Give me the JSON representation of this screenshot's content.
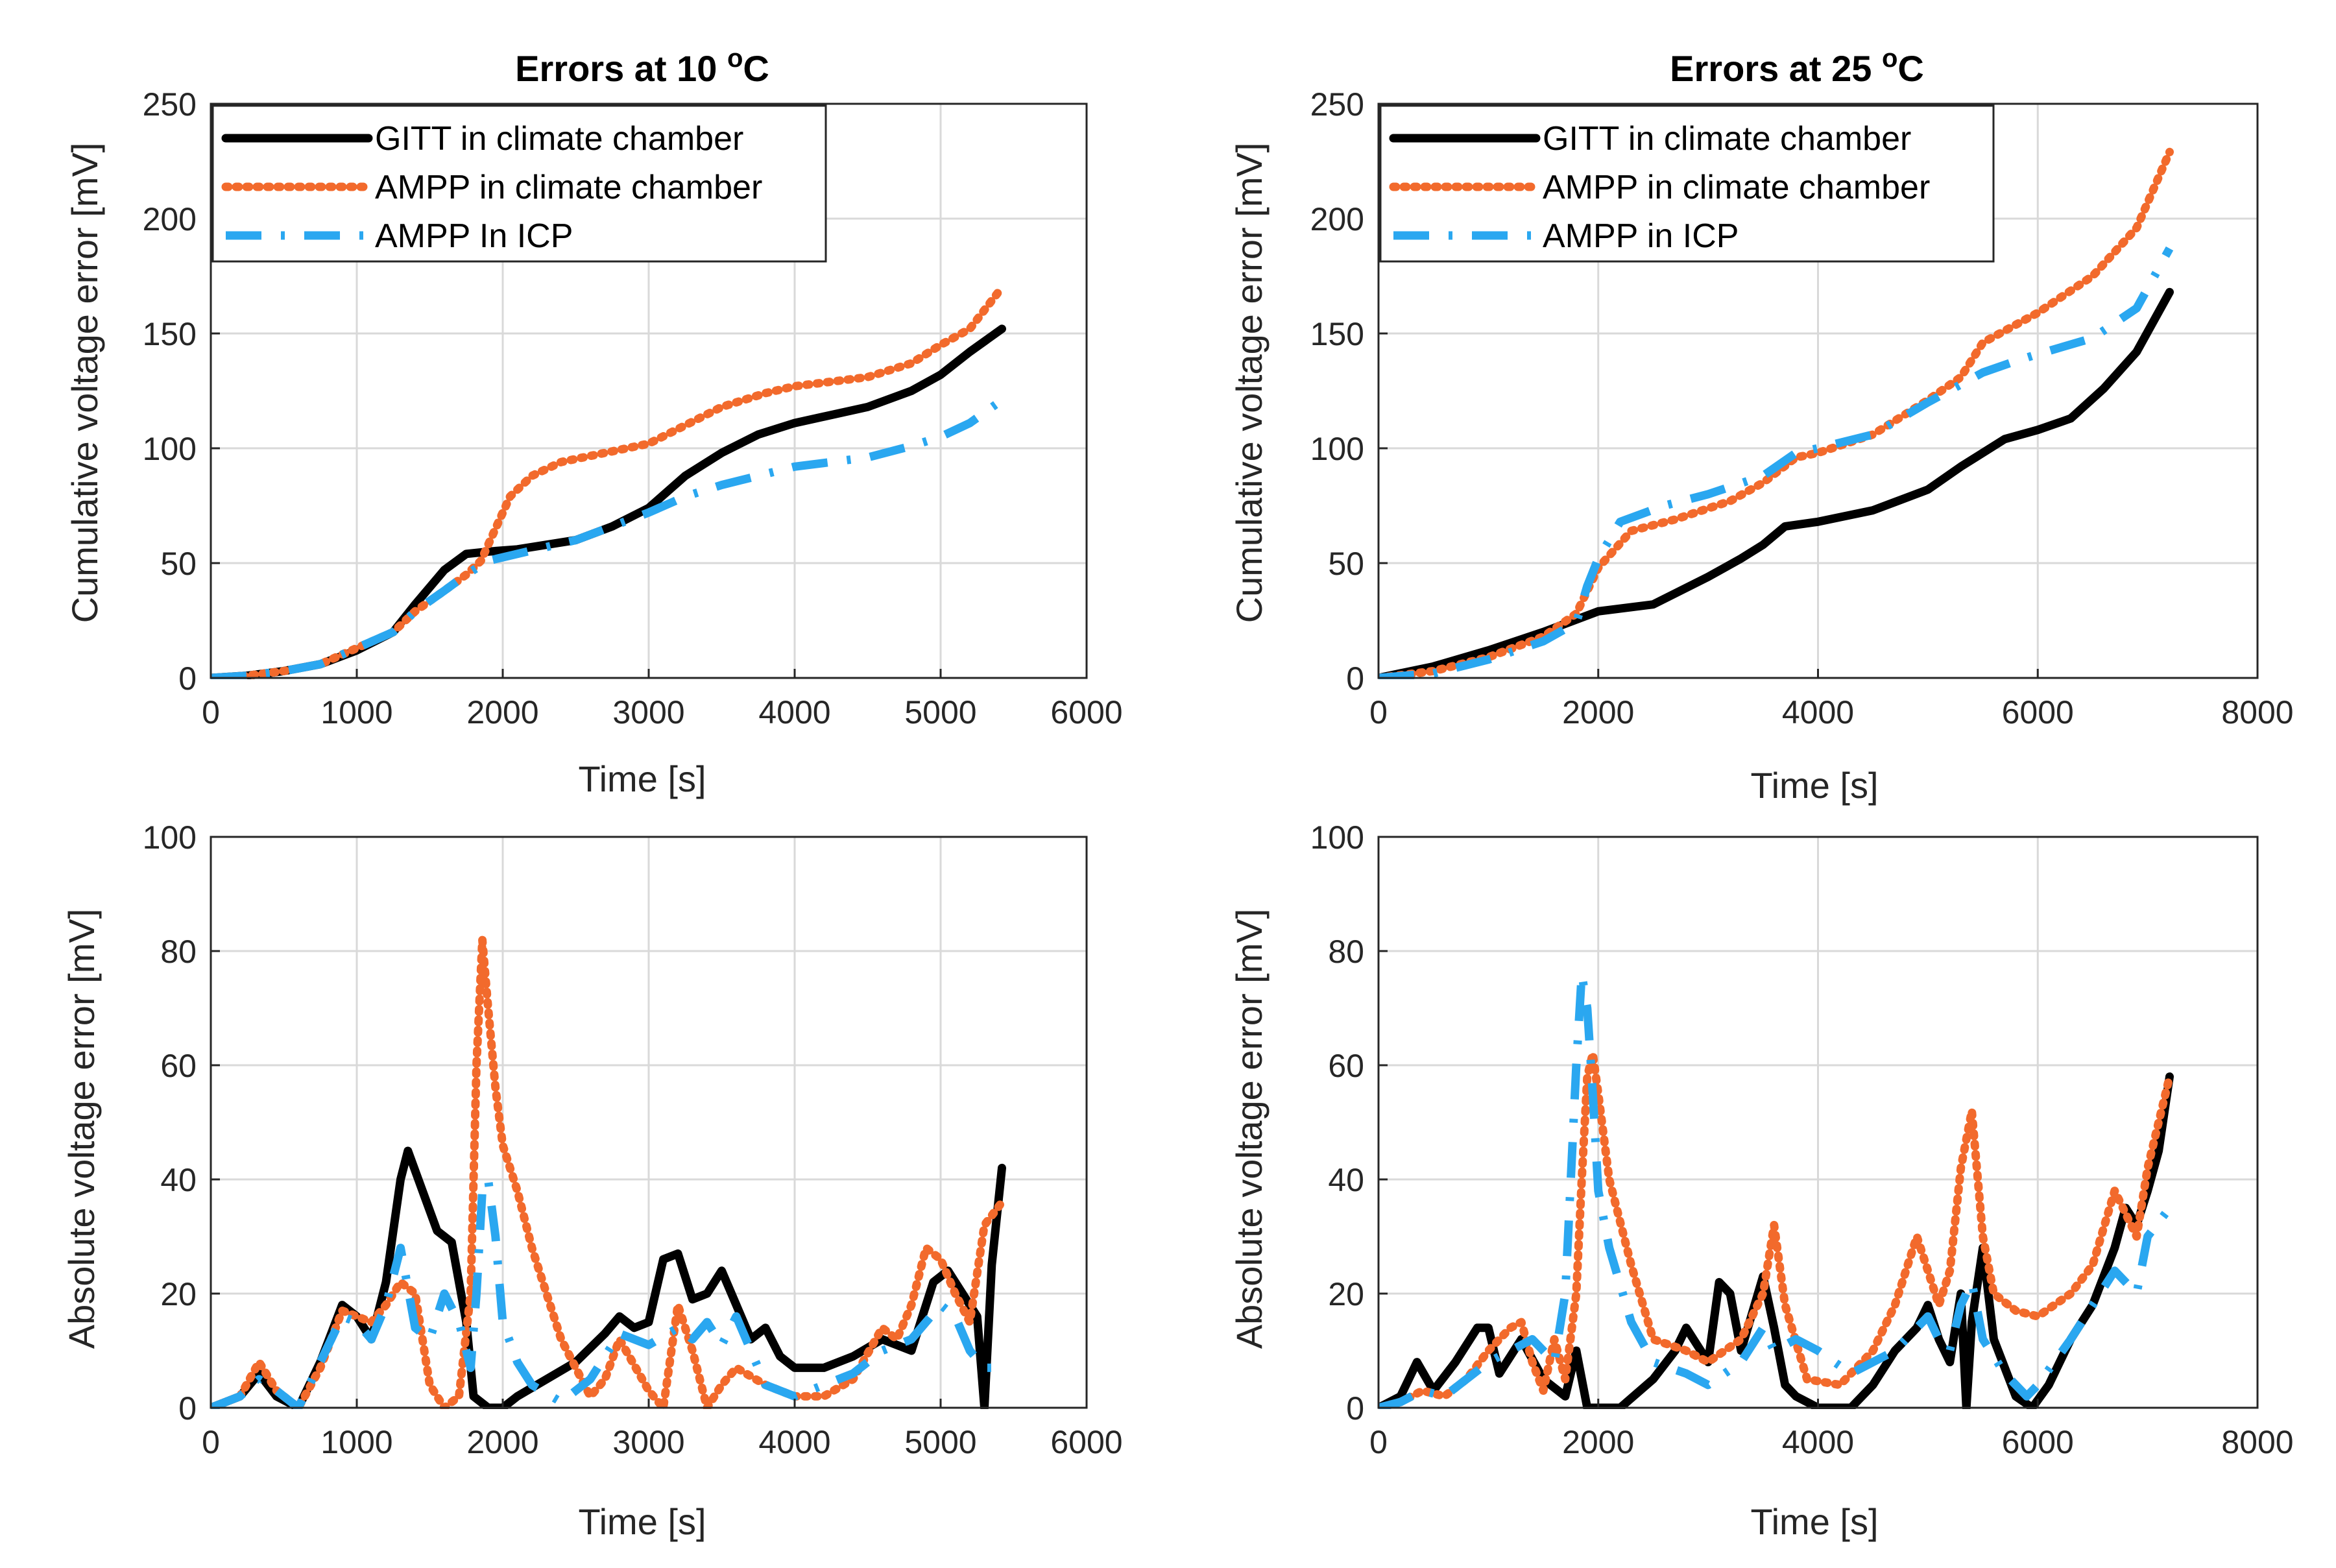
{
  "colors": {
    "gitt": "#000000",
    "ampp_chamber": "#f26a2c",
    "ampp_icp": "#2aa7f0",
    "grid": "#d9d9d9",
    "axis": "#262626"
  },
  "chart_data": [
    {
      "type": "line",
      "title": "Errors at 10°C",
      "xlabel": "Time [s]",
      "ylabel": "Cumulative  voltage  error [mV]",
      "xlim": [
        0,
        6000
      ],
      "ylim": [
        0,
        250
      ],
      "xticks": [
        0,
        1000,
        2000,
        3000,
        4000,
        5000,
        6000
      ],
      "yticks": [
        0,
        50,
        100,
        150,
        200,
        250
      ],
      "xtick_labels": [
        "0",
        "1000",
        "2000",
        "3000",
        "4000",
        "5000",
        "6000"
      ],
      "ytick_labels": [
        "0",
        "50",
        "100",
        "150",
        "200",
        "250"
      ],
      "grid": true,
      "legend": [
        "GITT in climate chamber",
        "AMPP in climate chamber",
        "AMPP In ICP"
      ],
      "legend_position": "top-left",
      "series": [
        {
          "name": "GITT in climate chamber",
          "style": "solid",
          "x": [
            0,
            250,
            500,
            750,
            1000,
            1250,
            1400,
            1600,
            1750,
            1900,
            2100,
            2500,
            2750,
            3000,
            3250,
            3500,
            3750,
            4000,
            4500,
            4800,
            5000,
            5200,
            5420
          ],
          "y": [
            0,
            1,
            3,
            6,
            12,
            20,
            32,
            47,
            54,
            55,
            56,
            60,
            66,
            74,
            88,
            98,
            106,
            111,
            118,
            125,
            132,
            142,
            152
          ]
        },
        {
          "name": "AMPP in climate chamber",
          "style": "dotted",
          "x": [
            0,
            250,
            500,
            750,
            1000,
            1250,
            1400,
            1600,
            1750,
            1850,
            1950,
            2050,
            2200,
            2400,
            2700,
            3000,
            3250,
            3500,
            3800,
            4000,
            4500,
            4800,
            5000,
            5200,
            5420
          ],
          "y": [
            0,
            1,
            3,
            6,
            13,
            20,
            29,
            38,
            45,
            51,
            65,
            79,
            88,
            94,
            98,
            102,
            110,
            118,
            124,
            127,
            131,
            137,
            145,
            152,
            170
          ]
        },
        {
          "name": "AMPP In ICP",
          "style": "dashed",
          "x": [
            0,
            250,
            500,
            750,
            1000,
            1250,
            1400,
            1600,
            1750,
            1900,
            2100,
            2500,
            2750,
            3000,
            3250,
            3500,
            3750,
            4000,
            4500,
            4800,
            5000,
            5200,
            5420
          ],
          "y": [
            0,
            1,
            3,
            6,
            13,
            20,
            29,
            38,
            45,
            51,
            54,
            60,
            66,
            72,
            79,
            84,
            88,
            92,
            96,
            101,
            105,
            111,
            121
          ]
        }
      ]
    },
    {
      "type": "line",
      "title": "Errors at 25°C",
      "xlabel": "Time [s]",
      "ylabel": "Cumulative voltage error [mV]",
      "xlim": [
        0,
        8000
      ],
      "ylim": [
        0,
        250
      ],
      "xticks": [
        0,
        2000,
        4000,
        6000,
        8000
      ],
      "yticks": [
        0,
        50,
        100,
        150,
        200,
        250
      ],
      "xtick_labels": [
        "0",
        "2000",
        "4000",
        "6000",
        "8000"
      ],
      "ytick_labels": [
        "0",
        "50",
        "100",
        "150",
        "200",
        "250"
      ],
      "grid": true,
      "legend": [
        "GITT in climate chamber",
        "AMPP in climate chamber",
        "AMPP in ICP"
      ],
      "legend_position": "top-left",
      "series": [
        {
          "name": "GITT in climate chamber",
          "style": "solid",
          "x": [
            0,
            500,
            1000,
            1500,
            2000,
            2500,
            3000,
            3300,
            3500,
            3700,
            4000,
            4500,
            5000,
            5300,
            5700,
            6000,
            6300,
            6600,
            6900,
            7200
          ],
          "y": [
            0,
            5,
            12,
            20,
            29,
            32,
            44,
            52,
            58,
            66,
            68,
            73,
            82,
            92,
            104,
            108,
            113,
            126,
            142,
            168
          ]
        },
        {
          "name": "AMPP in climate chamber",
          "style": "dotted",
          "x": [
            0,
            500,
            1000,
            1500,
            1800,
            2000,
            2300,
            2700,
            3200,
            3500,
            3800,
            4000,
            4500,
            5000,
            5300,
            5500,
            6000,
            6500,
            6900,
            7200
          ],
          "y": [
            0,
            3,
            9,
            18,
            28,
            48,
            64,
            69,
            77,
            85,
            96,
            98,
            106,
            121,
            131,
            146,
            159,
            175,
            196,
            229
          ]
        },
        {
          "name": "AMPP in ICP",
          "style": "dashed",
          "x": [
            0,
            500,
            1000,
            1500,
            1800,
            1900,
            2000,
            2200,
            2600,
            3000,
            3500,
            3800,
            4000,
            4500,
            5000,
            5500,
            5800,
            6000,
            6500,
            6900,
            7200
          ],
          "y": [
            0,
            2,
            8,
            16,
            24,
            40,
            52,
            68,
            75,
            80,
            88,
            98,
            100,
            106,
            120,
            133,
            138,
            141,
            148,
            161,
            187
          ]
        }
      ]
    },
    {
      "type": "line",
      "title": "",
      "xlabel": "Time [s]",
      "ylabel": "Absolute voltage  error [mV]",
      "xlim": [
        0,
        6000
      ],
      "ylim": [
        0,
        100
      ],
      "xticks": [
        0,
        1000,
        2000,
        3000,
        4000,
        5000,
        6000
      ],
      "yticks": [
        0,
        20,
        40,
        60,
        80,
        100
      ],
      "xtick_labels": [
        "0",
        "1000",
        "2000",
        "3000",
        "4000",
        "5000",
        "6000"
      ],
      "ytick_labels": [
        "0",
        "20",
        "40",
        "60",
        "80",
        "100"
      ],
      "grid": true,
      "series": [
        {
          "name": "GITT in climate chamber",
          "style": "solid",
          "x": [
            0,
            200,
            330,
            450,
            600,
            750,
            900,
            1000,
            1100,
            1200,
            1300,
            1350,
            1450,
            1550,
            1650,
            1750,
            1800,
            1900,
            2000,
            2100,
            2300,
            2500,
            2700,
            2800,
            2900,
            3000,
            3100,
            3200,
            3300,
            3400,
            3500,
            3600,
            3700,
            3800,
            3900,
            4000,
            4200,
            4400,
            4600,
            4800,
            4950,
            5050,
            5150,
            5250,
            5300,
            5350,
            5420
          ],
          "y": [
            0,
            2,
            6,
            2,
            0,
            8,
            18,
            16,
            12,
            22,
            40,
            45,
            38,
            31,
            29,
            15,
            2,
            0,
            0,
            2,
            5,
            8,
            13,
            16,
            14,
            15,
            26,
            27,
            19,
            20,
            24,
            18,
            12,
            14,
            9,
            7,
            7,
            9,
            12,
            10,
            22,
            24,
            20,
            16,
            0,
            25,
            42
          ]
        },
        {
          "name": "AMPP in climate chamber",
          "style": "dotted",
          "x": [
            0,
            200,
            330,
            450,
            600,
            750,
            900,
            1000,
            1100,
            1200,
            1300,
            1400,
            1500,
            1600,
            1700,
            1780,
            1820,
            1860,
            1900,
            1950,
            2000,
            2100,
            2200,
            2400,
            2600,
            2700,
            2800,
            3000,
            3100,
            3200,
            3300,
            3400,
            3500,
            3600,
            3800,
            4000,
            4200,
            4400,
            4600,
            4700,
            4800,
            4900,
            5000,
            5100,
            5200,
            5300,
            5420
          ],
          "y": [
            0,
            2,
            8,
            3,
            0,
            7,
            17,
            16,
            15,
            18,
            22,
            20,
            4,
            0,
            2,
            20,
            60,
            82,
            70,
            56,
            46,
            38,
            28,
            12,
            2,
            5,
            12,
            3,
            0,
            18,
            10,
            0,
            4,
            7,
            4,
            2,
            2,
            5,
            14,
            12,
            18,
            28,
            26,
            20,
            15,
            32,
            36
          ]
        },
        {
          "name": "AMPP In ICP",
          "style": "dashed",
          "x": [
            0,
            200,
            330,
            450,
            600,
            750,
            900,
            1000,
            1100,
            1200,
            1300,
            1400,
            1500,
            1600,
            1700,
            1780,
            1820,
            1860,
            1900,
            1950,
            2000,
            2100,
            2200,
            2400,
            2600,
            2800,
            3000,
            3200,
            3300,
            3400,
            3500,
            3600,
            3800,
            4000,
            4200,
            4400,
            4600,
            4800,
            5000,
            5100,
            5200,
            5300,
            5420
          ],
          "y": [
            0,
            2,
            5,
            3,
            0,
            8,
            16,
            15,
            12,
            18,
            28,
            14,
            12,
            20,
            15,
            7,
            20,
            38,
            40,
            30,
            15,
            8,
            4,
            1,
            5,
            13,
            11,
            14,
            12,
            15,
            11,
            16,
            4,
            2,
            4,
            6,
            10,
            12,
            18,
            16,
            10,
            7,
            7
          ]
        }
      ]
    },
    {
      "type": "line",
      "title": "",
      "xlabel": "Time [s]",
      "ylabel": "Absolute voltage error [mV]",
      "xlim": [
        0,
        8000
      ],
      "ylim": [
        0,
        100
      ],
      "xticks": [
        0,
        2000,
        4000,
        6000,
        8000
      ],
      "yticks": [
        0,
        20,
        40,
        60,
        80,
        100
      ],
      "xtick_labels": [
        "0",
        "2000",
        "4000",
        "6000",
        "8000"
      ],
      "ytick_labels": [
        "0",
        "20",
        "40",
        "60",
        "80",
        "100"
      ],
      "grid": true,
      "series": [
        {
          "name": "GITT in climate chamber",
          "style": "solid",
          "x": [
            0,
            200,
            350,
            500,
            700,
            900,
            1000,
            1100,
            1300,
            1500,
            1700,
            1800,
            1900,
            2000,
            2200,
            2500,
            2700,
            2800,
            3000,
            3100,
            3200,
            3300,
            3500,
            3600,
            3700,
            3800,
            4000,
            4300,
            4500,
            4700,
            4900,
            5000,
            5100,
            5200,
            5300,
            5350,
            5400,
            5500,
            5600,
            5800,
            5950,
            6100,
            6300,
            6500,
            6700,
            6800,
            6900,
            7000,
            7100,
            7200
          ],
          "y": [
            0,
            2,
            8,
            3,
            8,
            14,
            14,
            6,
            12,
            5,
            2,
            10,
            0,
            0,
            0,
            5,
            10,
            14,
            8,
            22,
            20,
            10,
            23,
            14,
            4,
            2,
            0,
            0,
            4,
            10,
            14,
            18,
            12,
            8,
            20,
            0,
            15,
            28,
            12,
            2,
            0,
            4,
            12,
            18,
            28,
            35,
            32,
            38,
            45,
            58
          ]
        },
        {
          "name": "AMPP in climate chamber",
          "style": "dotted",
          "x": [
            0,
            200,
            400,
            600,
            800,
            1000,
            1200,
            1300,
            1400,
            1500,
            1600,
            1700,
            1800,
            1850,
            1900,
            1950,
            2000,
            2100,
            2300,
            2500,
            2800,
            3000,
            3300,
            3500,
            3600,
            3700,
            3900,
            4200,
            4500,
            4700,
            4900,
            5000,
            5100,
            5200,
            5300,
            5400,
            5500,
            5600,
            5800,
            6000,
            6300,
            6500,
            6700,
            6900,
            7000,
            7200
          ],
          "y": [
            0,
            1,
            3,
            2,
            5,
            10,
            14,
            15,
            8,
            3,
            12,
            5,
            20,
            40,
            58,
            62,
            55,
            40,
            25,
            12,
            10,
            8,
            12,
            20,
            32,
            18,
            5,
            4,
            10,
            18,
            30,
            24,
            18,
            24,
            42,
            52,
            30,
            20,
            17,
            16,
            20,
            25,
            38,
            30,
            42,
            58
          ]
        },
        {
          "name": "AMPP in ICP",
          "style": "dashed",
          "x": [
            0,
            200,
            400,
            600,
            800,
            1000,
            1200,
            1400,
            1600,
            1700,
            1800,
            1850,
            1900,
            1950,
            2000,
            2100,
            2300,
            2500,
            2800,
            3000,
            3300,
            3500,
            3600,
            3800,
            4000,
            4300,
            4500,
            4700,
            4900,
            5000,
            5100,
            5200,
            5300,
            5400,
            5500,
            5700,
            5900,
            6000,
            6300,
            6500,
            6700,
            6900,
            7000,
            7200
          ],
          "y": [
            0,
            1,
            3,
            2,
            5,
            8,
            10,
            12,
            8,
            20,
            60,
            76,
            70,
            55,
            38,
            28,
            15,
            8,
            6,
            4,
            8,
            14,
            10,
            12,
            10,
            6,
            8,
            10,
            14,
            16,
            12,
            10,
            18,
            22,
            12,
            6,
            2,
            4,
            12,
            18,
            24,
            20,
            30,
            35
          ]
        }
      ]
    }
  ]
}
